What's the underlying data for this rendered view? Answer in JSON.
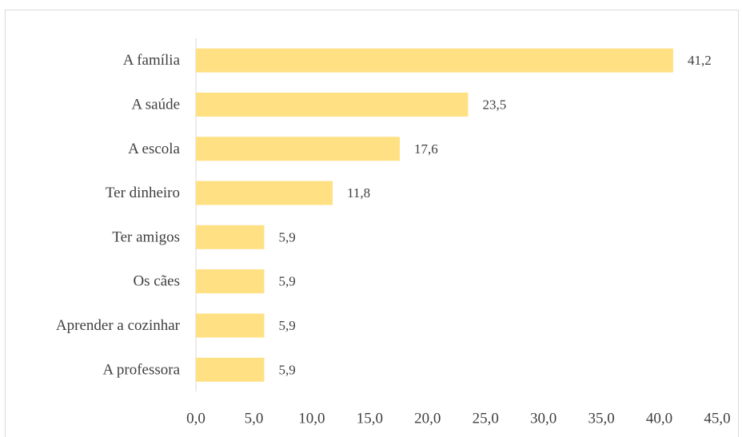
{
  "chart_data": {
    "type": "bar",
    "orientation": "horizontal",
    "categories": [
      "A família",
      "A saúde",
      "A escola",
      "Ter dinheiro",
      "Ter amigos",
      "Os cães",
      "Aprender a cozinhar",
      "A professora"
    ],
    "values": [
      41.2,
      23.5,
      17.6,
      11.8,
      5.9,
      5.9,
      5.9,
      5.9
    ],
    "value_labels": [
      "41,2",
      "23,5",
      "17,6",
      "11,8",
      "5,9",
      "5,9",
      "5,9",
      "5,9"
    ],
    "xlim": [
      0,
      45
    ],
    "x_ticks": [
      0,
      5,
      10,
      15,
      20,
      25,
      30,
      35,
      40,
      45
    ],
    "x_tick_labels": [
      "0,0",
      "5,0",
      "10,0",
      "15,0",
      "20,0",
      "25,0",
      "30,0",
      "35,0",
      "40,0",
      "45,0"
    ],
    "bar_color": "#ffe083",
    "grid": false,
    "legend": "none",
    "title": "",
    "xlabel": "",
    "ylabel": ""
  }
}
